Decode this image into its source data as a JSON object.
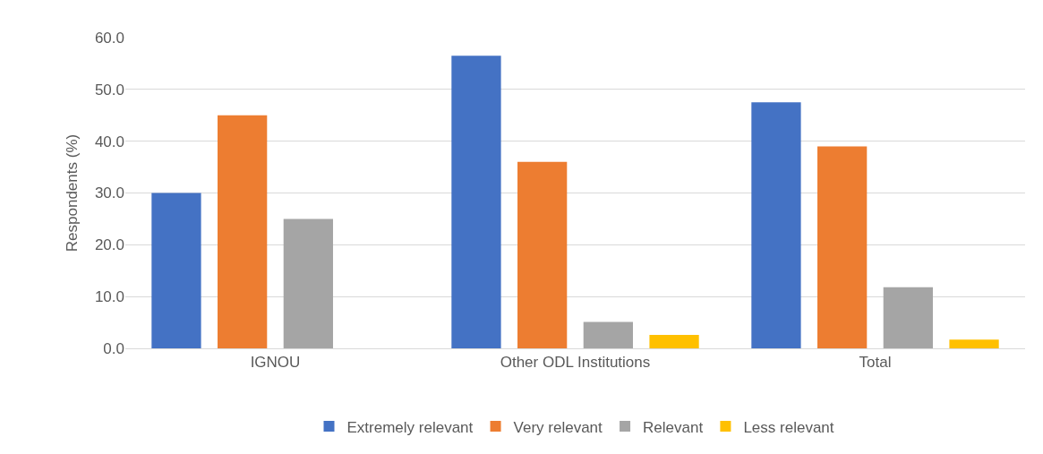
{
  "chart_data": {
    "type": "bar",
    "ylabel": "Respondents (%)",
    "categories": [
      "IGNOU",
      "Other ODL Institutions",
      "Total"
    ],
    "series": [
      {
        "name": "Extremely relevant",
        "color": "#4472c4",
        "values": [
          30.0,
          56.5,
          47.5
        ]
      },
      {
        "name": "Very relevant",
        "color": "#ed7d31",
        "values": [
          45.0,
          36.0,
          39.0
        ]
      },
      {
        "name": "Relevant",
        "color": "#a5a5a5",
        "values": [
          25.0,
          5.1,
          11.8
        ]
      },
      {
        "name": "Less relevant",
        "color": "#ffc000",
        "values": [
          0,
          2.6,
          1.7
        ]
      }
    ],
    "ylim": [
      0,
      60
    ],
    "yticks": [
      {
        "value": 0,
        "label": "0.0"
      },
      {
        "value": 10,
        "label": "10.0"
      },
      {
        "value": 20,
        "label": "20.0"
      },
      {
        "value": 30,
        "label": "30.0"
      },
      {
        "value": 40,
        "label": "40.0"
      },
      {
        "value": 50,
        "label": "50.0"
      },
      {
        "value": 60,
        "label": "60.0"
      }
    ],
    "grid": "y",
    "legend": "bottom"
  }
}
